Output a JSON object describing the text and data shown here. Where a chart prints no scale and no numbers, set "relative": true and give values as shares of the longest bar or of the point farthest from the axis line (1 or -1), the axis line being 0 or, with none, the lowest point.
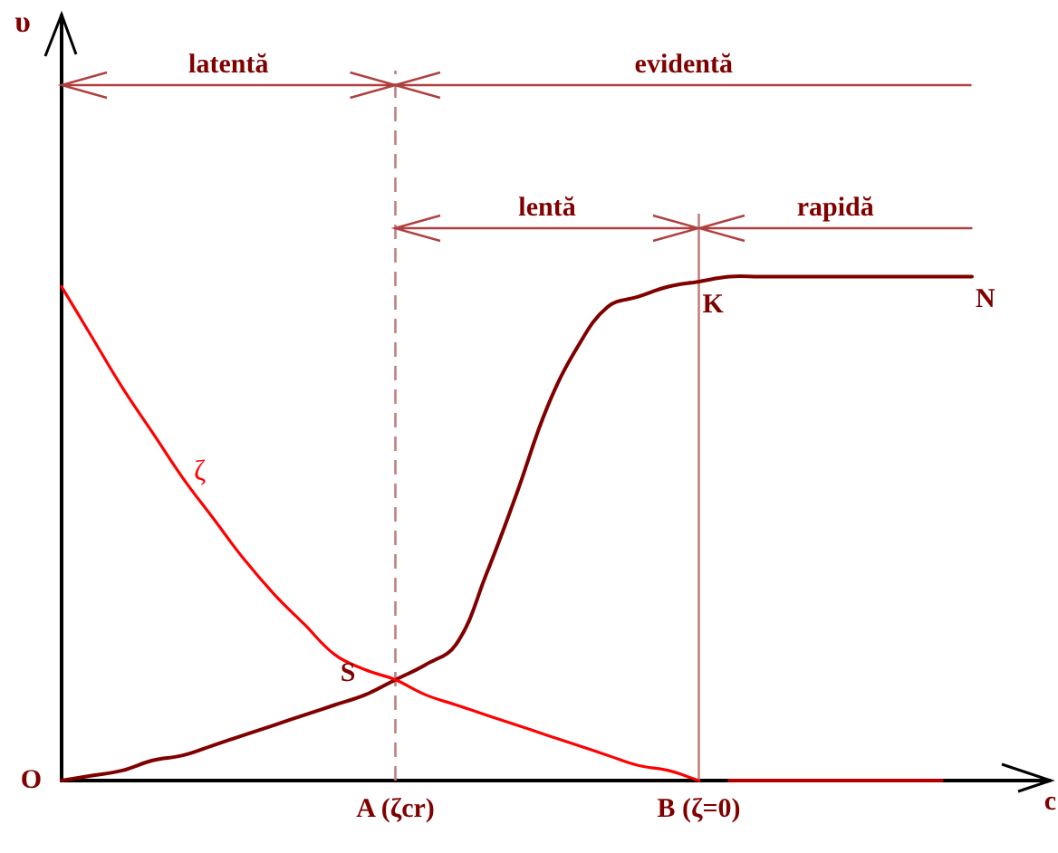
{
  "chart_data": {
    "type": "line",
    "relative": true,
    "xlabel": "c",
    "categories": [
      null,
      null,
      null,
      null,
      null,
      null,
      null,
      null,
      null,
      null,
      null,
      "A (ζcr)",
      null,
      null,
      null,
      null,
      null,
      null,
      null,
      null,
      null,
      "B (ζ=0)",
      null,
      null,
      null,
      null,
      null,
      null,
      null,
      null,
      null,
      null,
      null
    ],
    "series": [
      {
        "name": "ζ",
        "color": "#ff0000",
        "values": [
          0.98,
          0.88,
          0.78,
          0.69,
          0.6,
          0.52,
          0.44,
          0.37,
          0.31,
          0.25,
          0.22,
          0.2,
          0.17,
          0.15,
          0.13,
          0.11,
          0.09,
          0.07,
          0.05,
          0.03,
          0.02,
          0,
          null,
          null,
          null,
          null,
          null,
          null,
          null,
          null,
          null,
          null,
          null
        ]
      },
      {
        "color": "#800000",
        "values": [
          0,
          0.01,
          0.02,
          0.04,
          0.05,
          0.07,
          0.09,
          0.11,
          0.13,
          0.15,
          0.17,
          0.2,
          0.23,
          0.27,
          0.41,
          0.57,
          0.74,
          0.86,
          0.94,
          0.96,
          0.98,
          0.99,
          1,
          1,
          1,
          1,
          1,
          1,
          1,
          1,
          1,
          null,
          null
        ]
      },
      {
        "color": "#b00000",
        "values": [
          null,
          null,
          null,
          null,
          null,
          null,
          null,
          null,
          null,
          null,
          null,
          null,
          null,
          null,
          null,
          null,
          null,
          null,
          null,
          null,
          null,
          null,
          0,
          0,
          0,
          0,
          0,
          0,
          0,
          0,
          null,
          null,
          null
        ]
      }
    ],
    "ref_lines": [
      {
        "axis": "x",
        "value": "A (ζcr)",
        "color": "#c08080",
        "line_style": "dashed"
      },
      {
        "axis": "x",
        "value": "B (ζ=0)",
        "color": "#c08080",
        "line_style": "solid"
      }
    ],
    "annotations": [
      "latentă",
      "evidentă",
      "lentă",
      "rapidă",
      "O",
      "N",
      "υ",
      {
        "text": "S",
        "x": "A (ζcr)",
        "y": 0.2
      },
      {
        "text": "K",
        "x": "B (ζ=0)",
        "y": 0.99
      }
    ],
    "marker": "none"
  }
}
